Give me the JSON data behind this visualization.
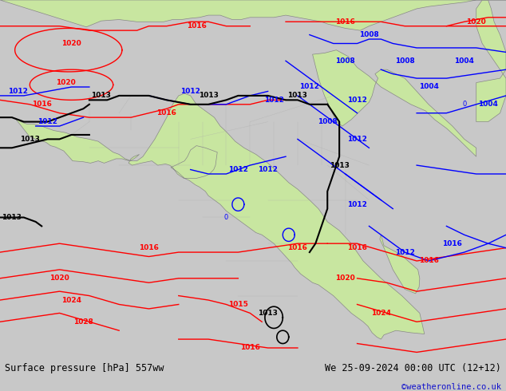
{
  "title_left": "Surface pressure [hPa] 557ww",
  "title_right": "We 25-09-2024 00:00 UTC (12+12)",
  "credit": "©weatheronline.co.uk",
  "bg_color": "#c8c8c8",
  "land_color": "#c8e6a0",
  "border_color": "#888888",
  "ocean_color": "#c8c8c8",
  "fig_width": 6.34,
  "fig_height": 4.9,
  "dpi": 100,
  "map_extent": [
    -20,
    65,
    -40,
    42
  ],
  "bottom_bar_color": "#d8d8d8",
  "bottom_bar_height": 0.088
}
